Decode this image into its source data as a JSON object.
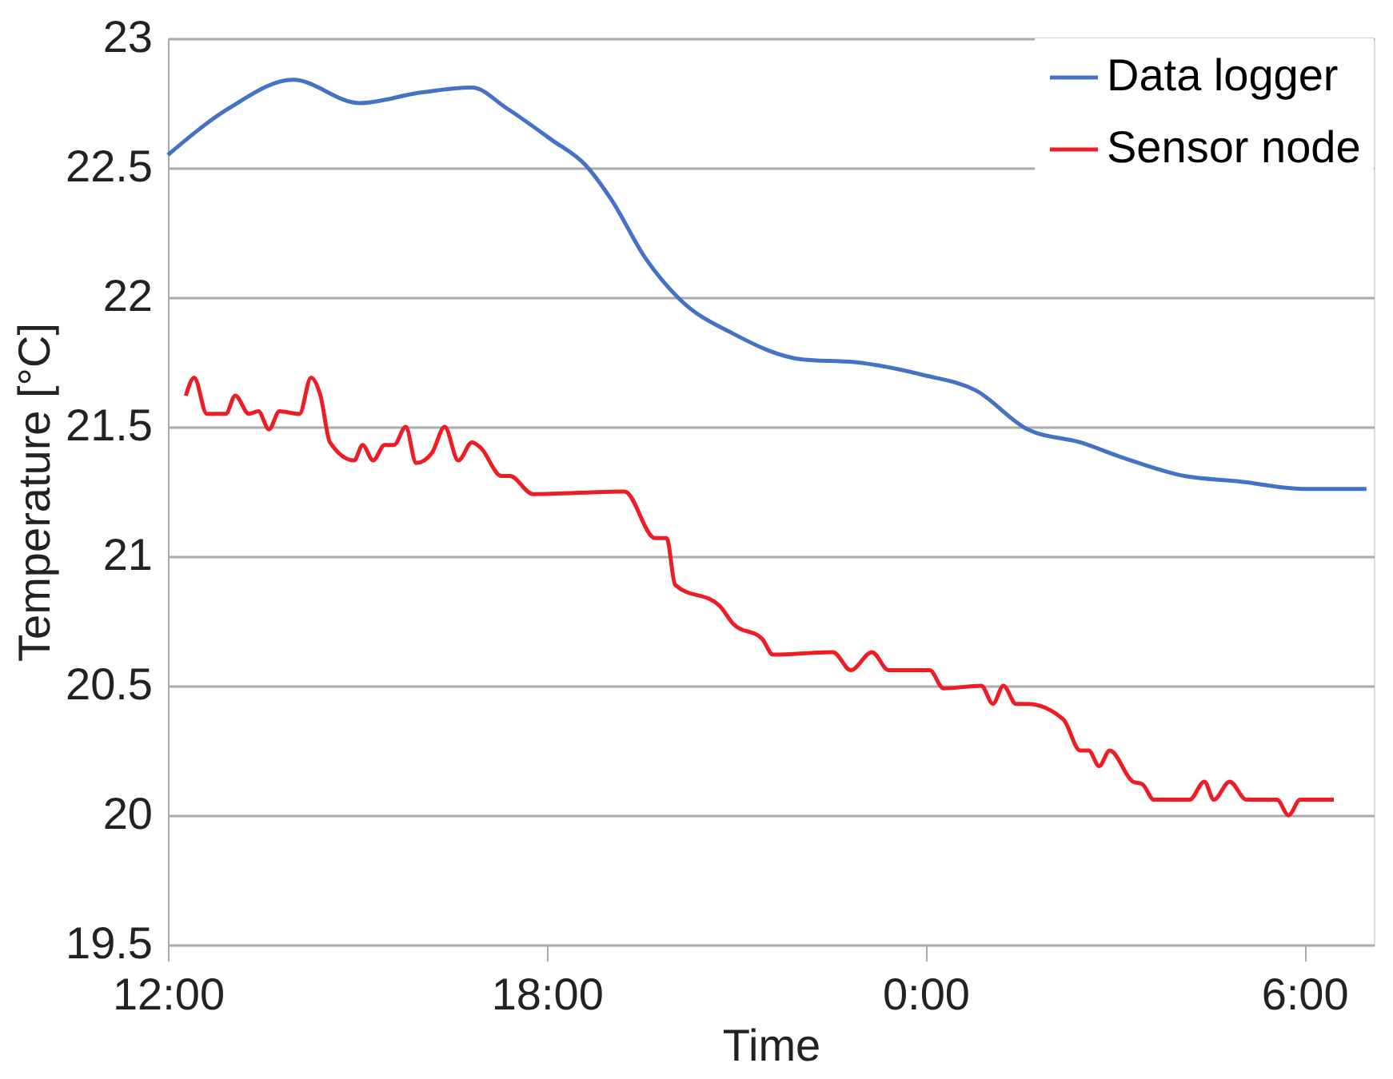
{
  "chart_data": {
    "type": "line",
    "xlabel": "Time",
    "ylabel": "Temperature [°C]",
    "xlim": [
      "2000-01-01T12:00",
      "2000-01-02T07:06"
    ],
    "xticks": [
      {
        "value": "2000-01-01T12:00",
        "label": "12:00"
      },
      {
        "value": "2000-01-01T18:00",
        "label": "18:00"
      },
      {
        "value": "2000-01-02T00:00",
        "label": "0:00"
      },
      {
        "value": "2000-01-02T06:00",
        "label": "6:00"
      }
    ],
    "ylim": [
      19.5,
      23
    ],
    "yticks": [
      19.5,
      20,
      20.5,
      21,
      21.5,
      22,
      22.5,
      23
    ],
    "grid": "y",
    "legend": "top right",
    "marker": "none",
    "line_style": "solid",
    "series": [
      {
        "name": "Data logger",
        "color": "#4472c4",
        "x": [
          "2000-01-01T12:00",
          "2000-01-01T12:58",
          "2000-01-01T13:59",
          "2000-01-01T15:02",
          "2000-01-01T15:59",
          "2000-01-01T16:49",
          "2000-01-01T17:22",
          "2000-01-01T18:04",
          "2000-01-01T18:37",
          "2000-01-01T19:01",
          "2000-01-01T19:34",
          "2000-01-01T20:07",
          "2000-01-01T20:57",
          "2000-01-01T22:03",
          "2000-01-01T22:52",
          "2000-01-01T23:58",
          "2000-01-02T00:48",
          "2000-01-02T01:37",
          "2000-01-02T02:27",
          "2000-01-02T03:08",
          "2000-01-02T04:06",
          "2000-01-02T04:56",
          "2000-01-02T06:02",
          "2000-01-02T06:59"
        ],
        "values": [
          22.55,
          22.73,
          22.84,
          22.75,
          22.79,
          22.81,
          22.73,
          22.61,
          22.51,
          22.38,
          22.15,
          21.99,
          21.86,
          21.76,
          21.75,
          21.7,
          21.64,
          21.49,
          21.44,
          21.38,
          21.31,
          21.29,
          21.26,
          21.26
        ]
      },
      {
        "name": "Sensor node",
        "color": "#ee1c25",
        "x": [
          "2000-01-01T12:17",
          "2000-01-01T12:25",
          "2000-01-01T12:37",
          "2000-01-01T12:55",
          "2000-01-01T13:04",
          "2000-01-01T13:17",
          "2000-01-01T13:26",
          "2000-01-01T13:36",
          "2000-01-01T13:46",
          "2000-01-01T14:05",
          "2000-01-01T14:16",
          "2000-01-01T14:25",
          "2000-01-01T14:34",
          "2000-01-01T14:57",
          "2000-01-01T15:05",
          "2000-01-01T15:15",
          "2000-01-01T15:26",
          "2000-01-01T15:35",
          "2000-01-01T15:46",
          "2000-01-01T15:56",
          "2000-01-01T16:11",
          "2000-01-01T16:23",
          "2000-01-01T16:36",
          "2000-01-01T16:49",
          "2000-01-01T16:57",
          "2000-01-01T17:17",
          "2000-01-01T17:25",
          "2000-01-01T17:47",
          "2000-01-01T19:14",
          "2000-01-01T19:43",
          "2000-01-01T19:54",
          "2000-01-01T20:02",
          "2000-01-01T20:44",
          "2000-01-01T20:57",
          "2000-01-01T21:25",
          "2000-01-01T21:35",
          "2000-01-01T22:32",
          "2000-01-01T22:49",
          "2000-01-01T23:09",
          "2000-01-01T23:25",
          "2000-01-02T00:04",
          "2000-01-02T00:17",
          "2000-01-02T00:53",
          "2000-01-02T01:04",
          "2000-01-02T01:14",
          "2000-01-02T01:26",
          "2000-01-02T01:37",
          "2000-01-02T02:11",
          "2000-01-02T02:27",
          "2000-01-02T02:35",
          "2000-01-02T02:45",
          "2000-01-02T02:55",
          "2000-01-02T03:17",
          "2000-01-02T03:26",
          "2000-01-02T03:37",
          "2000-01-02T04:11",
          "2000-01-02T04:25",
          "2000-01-02T04:34",
          "2000-01-02T04:49",
          "2000-01-02T05:05",
          "2000-01-02T05:34",
          "2000-01-02T05:45",
          "2000-01-02T05:56",
          "2000-01-02T06:28"
        ],
        "values": [
          21.62,
          21.69,
          21.55,
          21.55,
          21.62,
          21.55,
          21.56,
          21.49,
          21.56,
          21.55,
          21.69,
          21.62,
          21.44,
          21.37,
          21.43,
          21.37,
          21.43,
          21.43,
          21.5,
          21.36,
          21.4,
          21.5,
          21.37,
          21.44,
          21.42,
          21.31,
          21.31,
          21.24,
          21.25,
          21.07,
          21.07,
          20.89,
          20.81,
          20.74,
          20.68,
          20.62,
          20.63,
          20.56,
          20.63,
          20.56,
          20.56,
          20.49,
          20.5,
          20.43,
          20.5,
          20.43,
          20.43,
          20.37,
          20.25,
          20.25,
          20.19,
          20.25,
          20.13,
          20.12,
          20.06,
          20.06,
          20.13,
          20.06,
          20.13,
          20.06,
          20.06,
          20.0,
          20.06,
          20.06
        ]
      }
    ]
  }
}
